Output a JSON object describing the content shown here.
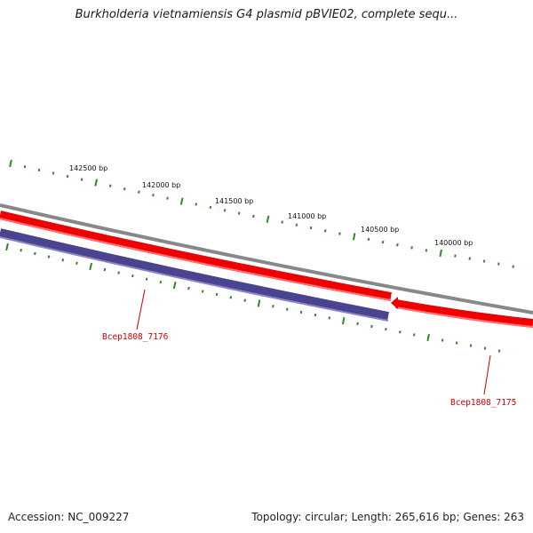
{
  "title": "Burkholderia vietnamiensis G4 plasmid pBVIE02, complete sequ...",
  "ruler_labels": [
    "142500 bp",
    "142000 bp",
    "141500 bp",
    "141000 bp",
    "140500 bp",
    "140000 bp"
  ],
  "genes": [
    {
      "label": "Bcep1808_7176",
      "strand": "reverse"
    },
    {
      "label": "Bcep1808_7175",
      "strand": "forward"
    }
  ],
  "footer": {
    "accession": "Accession: NC_009227",
    "summary": "Topology: circular; Length: 265,616 bp; Genes: 263"
  },
  "colors": {
    "backbone": "#888888",
    "forward_gene": "#ee0000",
    "reverse_gene": "#4a4390",
    "ticks": "#2e8b22",
    "gene_label": "#cc0000"
  }
}
